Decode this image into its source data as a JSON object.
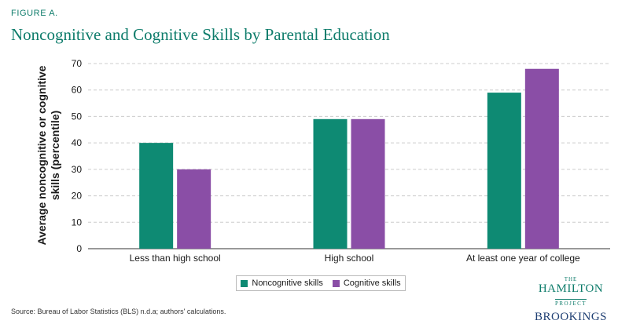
{
  "figure_label": "FIGURE A.",
  "chart_data": {
    "type": "bar",
    "title": "Noncognitive and Cognitive Skills by Parental Education",
    "xlabel": "",
    "ylabel": "Average noncognitive or cognitive skills (percentile)",
    "categories": [
      "Less than high school",
      "High school",
      "At least one year of college"
    ],
    "series": [
      {
        "name": "Noncognitive skills",
        "values": [
          40,
          49,
          59
        ],
        "color": "#0e8a73"
      },
      {
        "name": "Cognitive skills",
        "values": [
          30,
          49,
          68
        ],
        "color": "#8a4ea6"
      }
    ],
    "ylim": [
      0,
      70
    ],
    "yticks": [
      0,
      10,
      20,
      30,
      40,
      50,
      60,
      70
    ],
    "grid": true,
    "legend_position": "bottom-center"
  },
  "source": "Source: Bureau of Labor Statistics (BLS) n.d.a; authors' calculations.",
  "logo": {
    "the": "THE",
    "hamilton": "HAMILTON",
    "project": "PROJECT",
    "brookings": "BROOKINGS"
  }
}
